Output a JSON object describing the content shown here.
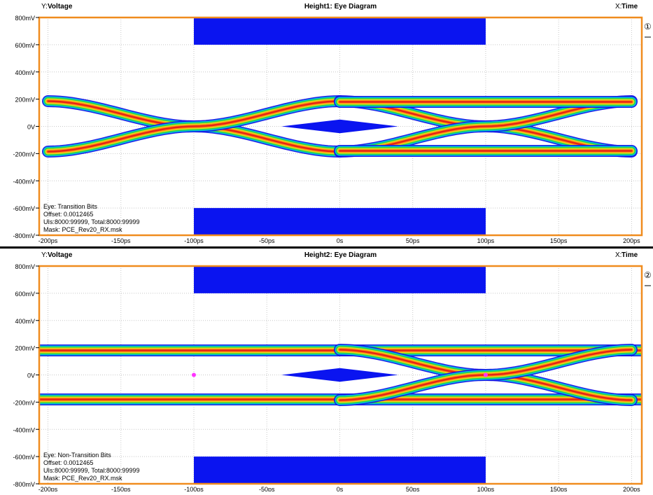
{
  "colors": {
    "frame": "#f08c1e",
    "mask": "#0a14f0",
    "grid": "#c8c8c8",
    "marker": "#ff33ff",
    "sep": "#000000"
  },
  "chart_data": [
    {
      "type": "eye-diagram",
      "title": "Height1: Eye Diagram",
      "ylabel_prefix": "Y:",
      "ylabel": "Voltage",
      "xlabel_prefix": "X:",
      "xlabel": "Time",
      "badge": "①",
      "xlim": [
        -206,
        207
      ],
      "ylim": [
        -800,
        800
      ],
      "x_ticks": [
        {
          "v": -200,
          "label": "-200ps"
        },
        {
          "v": -150,
          "label": "-150ps"
        },
        {
          "v": -100,
          "label": "-100ps"
        },
        {
          "v": -50,
          "label": "-50ps"
        },
        {
          "v": 0,
          "label": "0s"
        },
        {
          "v": 50,
          "label": "50ps"
        },
        {
          "v": 100,
          "label": "100ps"
        },
        {
          "v": 150,
          "label": "150ps"
        },
        {
          "v": 200,
          "label": "200ps"
        }
      ],
      "y_ticks": [
        {
          "v": 800,
          "label": "800mV"
        },
        {
          "v": 600,
          "label": "600mV"
        },
        {
          "v": 400,
          "label": "400mV"
        },
        {
          "v": 200,
          "label": "200mV"
        },
        {
          "v": 0,
          "label": "0V"
        },
        {
          "v": -200,
          "label": "-200mV"
        },
        {
          "v": -400,
          "label": "-400mV"
        },
        {
          "v": -600,
          "label": "-600mV"
        },
        {
          "v": -800,
          "label": "-800mV"
        }
      ],
      "info": [
        "Eye: Transition Bits",
        "Offset: 0.0012465",
        "UIs:8000:99999, Total:8000:99999",
        "Mask: PCE_Rev20_RX.msk"
      ],
      "mask": {
        "top": {
          "x": [
            -100,
            100
          ],
          "y": [
            600,
            800
          ]
        },
        "bottom": {
          "x": [
            -100,
            100
          ],
          "y": [
            -800,
            -600
          ]
        },
        "center": {
          "points": [
            [
              -40,
              0
            ],
            [
              0,
              50
            ],
            [
              40,
              0
            ],
            [
              0,
              -50
            ]
          ]
        }
      },
      "traces": [
        {
          "kind": "cross",
          "x0": -200,
          "x1": 0,
          "cross_at": -100
        },
        {
          "kind": "cross",
          "x0": 0,
          "x1": 200,
          "cross_at": 100
        },
        {
          "kind": "flat",
          "x0": 0,
          "x1": 200,
          "level": 180
        },
        {
          "kind": "flat",
          "x0": 0,
          "x1": 200,
          "level": -180
        }
      ],
      "amplitude": 185,
      "markers": []
    },
    {
      "type": "eye-diagram",
      "title": "Height2: Eye Diagram",
      "ylabel_prefix": "Y:",
      "ylabel": "Voltage",
      "xlabel_prefix": "X:",
      "xlabel": "Time",
      "badge": "②",
      "xlim": [
        -206,
        207
      ],
      "ylim": [
        -800,
        800
      ],
      "x_ticks": [
        {
          "v": -200,
          "label": "-200ps"
        },
        {
          "v": -150,
          "label": "-150ps"
        },
        {
          "v": -100,
          "label": "-100ps"
        },
        {
          "v": -50,
          "label": "-50ps"
        },
        {
          "v": 0,
          "label": "0s"
        },
        {
          "v": 50,
          "label": "50ps"
        },
        {
          "v": 100,
          "label": "100ps"
        },
        {
          "v": 150,
          "label": "150ps"
        },
        {
          "v": 200,
          "label": "200ps"
        }
      ],
      "y_ticks": [
        {
          "v": 800,
          "label": "800mV"
        },
        {
          "v": 600,
          "label": "600mV"
        },
        {
          "v": 400,
          "label": "400mV"
        },
        {
          "v": 200,
          "label": "200mV"
        },
        {
          "v": 0,
          "label": "0V"
        },
        {
          "v": -200,
          "label": "-200mV"
        },
        {
          "v": -400,
          "label": "-400mV"
        },
        {
          "v": -600,
          "label": "-600mV"
        },
        {
          "v": -800,
          "label": "-800mV"
        }
      ],
      "info": [
        "Eye: Non-Transition Bits",
        "Offset: 0.0012465",
        "UIs:8000:99999, Total:8000:99999",
        "Mask: PCE_Rev20_RX.msk"
      ],
      "mask": {
        "top": {
          "x": [
            -100,
            100
          ],
          "y": [
            600,
            800
          ]
        },
        "bottom": {
          "x": [
            -100,
            100
          ],
          "y": [
            -800,
            -600
          ]
        },
        "center": {
          "points": [
            [
              -40,
              0
            ],
            [
              0,
              50
            ],
            [
              40,
              0
            ],
            [
              0,
              -50
            ]
          ]
        }
      },
      "traces": [
        {
          "kind": "flat",
          "x0": -206,
          "x1": 207,
          "level": 180
        },
        {
          "kind": "flat",
          "x0": -206,
          "x1": 207,
          "level": -180
        },
        {
          "kind": "cross",
          "x0": 0,
          "x1": 200,
          "cross_at": 100
        }
      ],
      "amplitude": 185,
      "markers": [
        {
          "x": -100,
          "y": 0
        },
        {
          "x": 100,
          "y": 0
        }
      ]
    }
  ]
}
